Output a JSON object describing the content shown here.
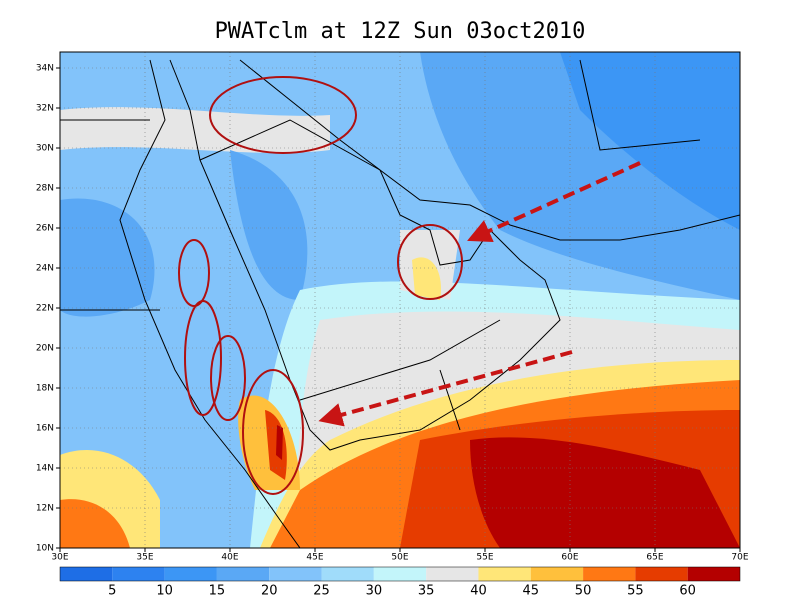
{
  "title": "PWATclm at 12Z Sun 03oct2010",
  "latitudes": [
    "10N",
    "12N",
    "14N",
    "16N",
    "18N",
    "20N",
    "22N",
    "24N",
    "26N",
    "28N",
    "30N",
    "32N",
    "34N"
  ],
  "longitudes": [
    "30E",
    "35E",
    "40E",
    "45E",
    "50E",
    "55E",
    "60E",
    "65E",
    "70E"
  ],
  "colorbar": {
    "colors": [
      "#1e6ee6",
      "#2d82f0",
      "#3c96f5",
      "#5aa8f5",
      "#82c3fa",
      "#a0dcfa",
      "#c3f5fa",
      "#e6e6e6",
      "#ffe678",
      "#ffc03c",
      "#ff7814",
      "#e63c00",
      "#b40000"
    ],
    "labels": [
      5,
      10,
      15,
      20,
      25,
      30,
      35,
      40,
      45,
      50,
      55,
      60
    ]
  }
}
